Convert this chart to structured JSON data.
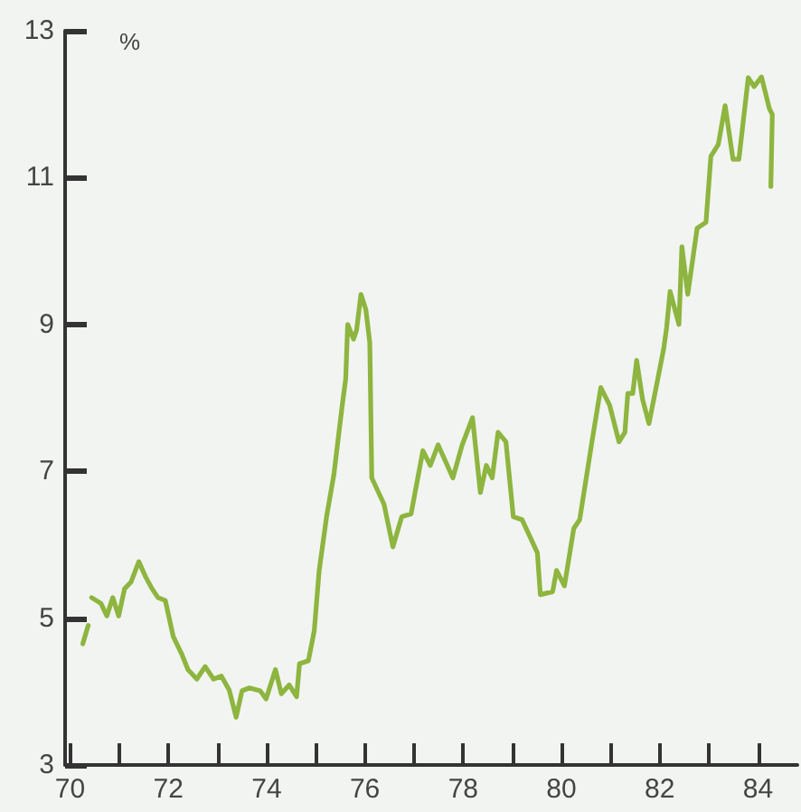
{
  "chart_data": {
    "type": "line",
    "ylabel": "%",
    "color": "#8db53f",
    "marker": "none",
    "line_style": "solid",
    "x": [
      70.26,
      70.37,
      70.4,
      70.44,
      70.63,
      70.75,
      70.87,
      70.99,
      71.11,
      71.24,
      71.4,
      71.54,
      71.67,
      71.79,
      71.94,
      72.1,
      72.28,
      72.4,
      72.58,
      72.75,
      72.92,
      73.08,
      73.24,
      73.38,
      73.5,
      73.65,
      73.87,
      73.99,
      74.18,
      74.3,
      74.46,
      74.61,
      74.67,
      74.85,
      74.97,
      75.07,
      75.22,
      75.37,
      75.53,
      75.61,
      75.65,
      75.77,
      75.83,
      75.92,
      76.02,
      76.1,
      76.14,
      76.39,
      76.57,
      76.75,
      76.94,
      77.18,
      77.33,
      77.49,
      77.79,
      77.98,
      78.19,
      78.35,
      78.47,
      78.59,
      78.71,
      78.87,
      79.02,
      79.2,
      79.51,
      79.57,
      79.82,
      79.9,
      80.06,
      80.25,
      80.37,
      80.61,
      80.8,
      80.98,
      81.17,
      81.29,
      81.35,
      81.45,
      81.53,
      81.65,
      81.78,
      81.96,
      82.08,
      82.14,
      82.21,
      82.39,
      82.45,
      82.57,
      82.76,
      82.94,
      83.04,
      83.19,
      83.33,
      83.49,
      83.61,
      83.8,
      83.92,
      84.07,
      84.23,
      84.29,
      84.26
    ],
    "values": [
      4.65,
      4.9,
      null,
      5.28,
      5.2,
      5.03,
      5.28,
      5.03,
      5.4,
      5.49,
      5.77,
      5.56,
      5.4,
      5.28,
      5.24,
      4.75,
      4.5,
      4.3,
      4.17,
      4.34,
      4.17,
      4.21,
      4.02,
      3.65,
      4.01,
      4.05,
      4.01,
      3.9,
      4.3,
      3.97,
      4.09,
      3.93,
      4.38,
      4.42,
      4.83,
      5.65,
      6.38,
      6.96,
      7.85,
      8.26,
      9.0,
      8.8,
      8.92,
      9.41,
      9.2,
      8.75,
      6.91,
      6.55,
      5.97,
      6.38,
      6.42,
      7.28,
      7.08,
      7.36,
      6.91,
      7.36,
      7.73,
      6.71,
      7.08,
      6.91,
      7.53,
      7.4,
      6.38,
      6.34,
      5.89,
      5.32,
      5.36,
      5.65,
      5.44,
      6.22,
      6.34,
      7.36,
      8.14,
      7.9,
      7.4,
      7.53,
      8.06,
      8.06,
      8.51,
      7.98,
      7.65,
      8.26,
      8.67,
      8.96,
      9.45,
      9.0,
      10.06,
      9.41,
      10.31,
      10.39,
      11.29,
      11.45,
      11.98,
      11.25,
      11.25,
      12.36,
      12.24,
      12.37,
      11.94,
      11.86,
      10.88
    ],
    "xlim": [
      69.9,
      84.8
    ],
    "xticks": [
      70,
      {
        "value": 71,
        "label": null
      },
      72,
      {
        "value": 73,
        "label": null
      },
      74,
      {
        "value": 75,
        "label": null
      },
      76,
      {
        "value": 77,
        "label": null
      },
      78,
      {
        "value": 79,
        "label": null
      },
      80,
      {
        "value": 81,
        "label": null
      },
      82,
      {
        "value": 83,
        "label": null
      },
      84
    ],
    "ylim": [
      3,
      13
    ],
    "yticks": [
      3,
      5,
      7,
      9,
      11,
      13
    ]
  }
}
